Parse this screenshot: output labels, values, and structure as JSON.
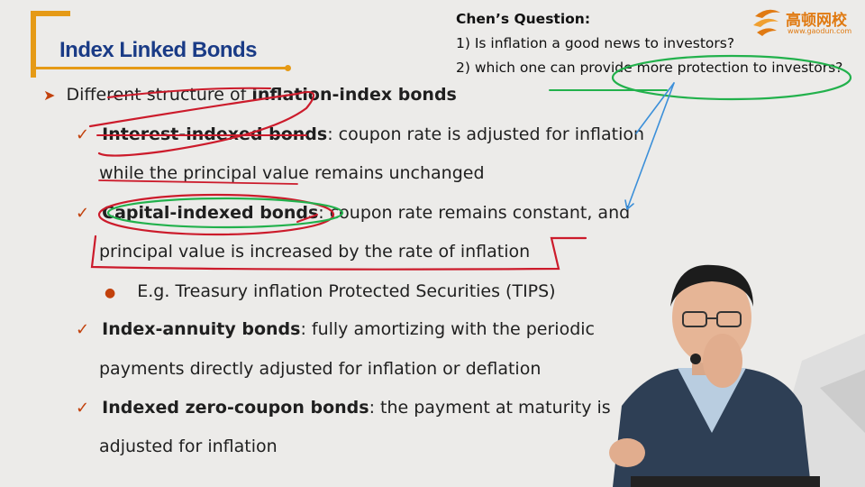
{
  "slide": {
    "title": "Index Linked Bonds",
    "intro_prefix": "Different structure of ",
    "intro_bold": "inflation-index bonds",
    "items": [
      {
        "term": "Interest-indexed bonds",
        "desc": ": coupon rate is adjusted for inflation",
        "cont": "while the principal value remains unchanged"
      },
      {
        "term": "Capital-indexed bonds",
        "desc": ": coupon rate remains constant, and",
        "cont": "principal value is increased by the rate of inflation",
        "sub": "E.g. Treasury inflation Protected Securities (TIPS)"
      },
      {
        "term": "Index-annuity bonds",
        "desc": ": fully amortizing with the periodic",
        "cont": "payments directly adjusted for inflation or deflation"
      },
      {
        "term": "Indexed zero-coupon bonds",
        "desc": ": the payment at maturity is",
        "cont": "adjusted for inflation"
      }
    ]
  },
  "questions": {
    "title": "Chen’s Question:",
    "q1": "1) Is inflation a good news to investors?",
    "q2": "2) which one can provide more protection to investors?"
  },
  "logo": {
    "name": "高顿网校",
    "url": "www.gaodun.com"
  },
  "colors": {
    "title_blue": "#1a3b86",
    "accent_orange": "#e59a16",
    "marker_red": "#c2410c",
    "annotation_red": "#cc1b2b",
    "annotation_green": "#22b14c",
    "annotation_blue": "#3b8fd9"
  }
}
